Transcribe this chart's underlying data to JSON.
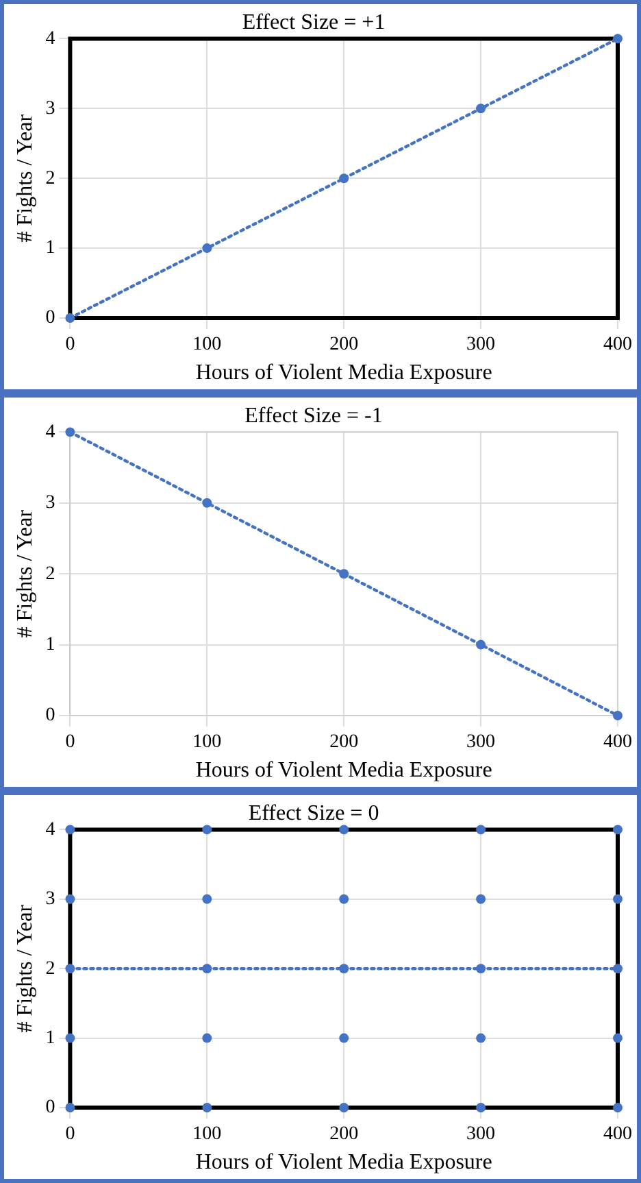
{
  "chart_data": [
    {
      "type": "line",
      "title": "Effect Size = +1",
      "xlabel": "Hours of Violent Media Exposure",
      "ylabel": "# Fights / Year",
      "x": [
        0,
        100,
        200,
        300,
        400
      ],
      "values": [
        0,
        1,
        2,
        3,
        4
      ],
      "color": "#4472c4",
      "xlim": [
        0,
        400
      ],
      "ylim": [
        0,
        4
      ],
      "xticks": [
        0,
        100,
        200,
        300,
        400
      ],
      "yticks": [
        0,
        1,
        2,
        3,
        4
      ],
      "grid": true,
      "marker": "circle",
      "line_style": "dotted"
    },
    {
      "type": "line",
      "title": "Effect Size = -1",
      "xlabel": "Hours of Violent Media Exposure",
      "ylabel": "# Fights / Year",
      "x": [
        0,
        100,
        200,
        300,
        400
      ],
      "values": [
        4,
        3,
        2,
        1,
        0
      ],
      "color": "#4472c4",
      "xlim": [
        0,
        400
      ],
      "ylim": [
        0,
        4
      ],
      "xticks": [
        0,
        100,
        200,
        300,
        400
      ],
      "yticks": [
        0,
        1,
        2,
        3,
        4
      ],
      "grid": true,
      "marker": "circle",
      "line_style": "dotted"
    },
    {
      "type": "scatter",
      "title": "Effect Size = 0",
      "xlabel": "Hours of Violent Media Exposure",
      "ylabel": "# Fights / Year",
      "xlim": [
        0,
        400
      ],
      "ylim": [
        0,
        4
      ],
      "xticks": [
        0,
        100,
        200,
        300,
        400
      ],
      "yticks": [
        0,
        1,
        2,
        3,
        4
      ],
      "grid": true,
      "marker": "circle",
      "series": [
        {
          "type": "scatter",
          "color": "#4472c4",
          "x": [
            0,
            0,
            0,
            0,
            0,
            100,
            100,
            100,
            100,
            100,
            200,
            200,
            200,
            200,
            200,
            300,
            300,
            300,
            300,
            300,
            400,
            400,
            400,
            400,
            400
          ],
          "values": [
            0,
            1,
            2,
            3,
            4,
            0,
            1,
            2,
            3,
            4,
            0,
            1,
            2,
            3,
            4,
            0,
            1,
            2,
            3,
            4,
            0,
            1,
            2,
            3,
            4
          ]
        },
        {
          "type": "line",
          "color": "#4472c4",
          "x": [
            0,
            400
          ],
          "values": [
            2,
            2
          ],
          "line_style": "dotted",
          "marker": "none"
        }
      ]
    }
  ]
}
